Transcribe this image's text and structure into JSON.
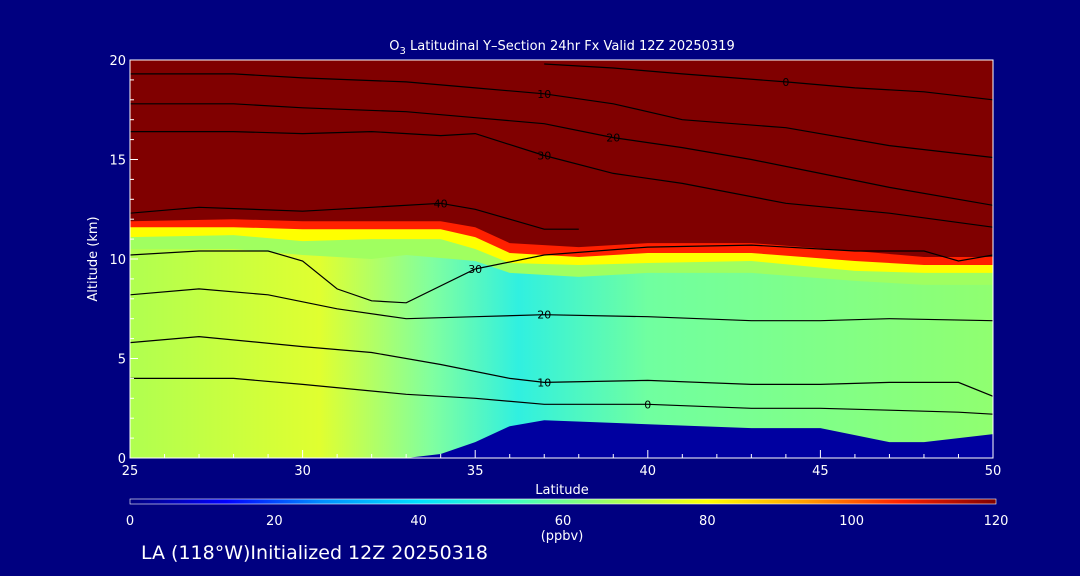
{
  "chart_data": {
    "type": "heatmap",
    "title_base": "O",
    "title_sub": "3",
    "title_rest": " Latitudinal Y–Section 24hr  Fx Valid 12Z 20250319",
    "xlabel": "Latitude",
    "ylabel": "Altitude (km)",
    "xlim": [
      25,
      50
    ],
    "ylim": [
      0,
      20
    ],
    "x_ticks": [
      "25",
      "30",
      "35",
      "40",
      "45",
      "50"
    ],
    "y_ticks": [
      "0",
      "5",
      "10",
      "15",
      "20"
    ],
    "colorbar": {
      "ticks": [
        "0",
        "20",
        "40",
        "60",
        "80",
        "100",
        "120"
      ],
      "label": "(ppbv)",
      "range": [
        0,
        120
      ],
      "colors": [
        "#000080",
        "#0000ff",
        "#0090ff",
        "#00e0ff",
        "#40ffc0",
        "#a0ff60",
        "#ffff00",
        "#ffa000",
        "#ff2000",
        "#800000"
      ]
    },
    "surface": {
      "note": "terrain profile (altitude km) along latitude",
      "x": [
        25,
        33,
        34,
        35,
        36,
        37,
        40,
        43,
        45,
        47,
        48,
        50
      ],
      "y": [
        0,
        0,
        0.2,
        0.8,
        1.6,
        1.9,
        1.7,
        1.5,
        1.5,
        0.8,
        0.8,
        1.2
      ]
    },
    "field_bands": [
      {
        "ppbv": 120,
        "x": [
          25,
          28,
          30,
          32,
          34,
          35,
          36,
          38,
          40,
          43,
          46,
          48,
          50
        ],
        "y": [
          11.9,
          12.0,
          11.9,
          11.9,
          11.9,
          11.6,
          10.8,
          10.6,
          10.8,
          10.8,
          10.4,
          10.1,
          10.1
        ]
      },
      {
        "ppbv": 100,
        "x": [
          25,
          28,
          30,
          32,
          34,
          35,
          36,
          38,
          40,
          43,
          46,
          48,
          50
        ],
        "y": [
          11.6,
          11.6,
          11.5,
          11.5,
          11.5,
          11.1,
          10.3,
          10.1,
          10.3,
          10.3,
          9.9,
          9.7,
          9.7
        ]
      },
      {
        "ppbv": 80,
        "x": [
          25,
          28,
          30,
          32,
          34,
          35,
          36,
          38,
          40,
          43,
          46,
          48,
          50
        ],
        "y": [
          11.1,
          11.2,
          10.9,
          11.0,
          11.0,
          10.5,
          9.8,
          9.7,
          9.8,
          9.9,
          9.4,
          9.3,
          9.3
        ]
      },
      {
        "ppbv": 60,
        "x": [
          25,
          28,
          30,
          32,
          33,
          35,
          36,
          38,
          40,
          43,
          46,
          48,
          50
        ],
        "y": [
          10.5,
          10.5,
          10.2,
          10.0,
          10.2,
          9.9,
          9.3,
          9.1,
          9.3,
          9.3,
          8.9,
          8.7,
          8.7
        ]
      }
    ],
    "contours": [
      {
        "label": "0",
        "x": [
          25,
          28,
          30,
          33,
          35,
          37,
          40,
          43,
          45,
          47,
          49,
          50
        ],
        "y": [
          4.0,
          4.0,
          3.7,
          3.2,
          3.0,
          2.7,
          2.7,
          2.5,
          2.5,
          2.4,
          2.3,
          2.2
        ]
      },
      {
        "label": "10",
        "x": [
          25,
          27,
          30,
          32,
          34,
          36,
          37,
          40,
          43,
          45,
          47,
          49,
          50
        ],
        "y": [
          5.8,
          6.1,
          5.6,
          5.3,
          4.7,
          4.0,
          3.8,
          3.9,
          3.7,
          3.7,
          3.8,
          3.8,
          3.1
        ]
      },
      {
        "label": "20",
        "x": [
          25,
          27,
          29,
          31,
          33,
          35,
          37,
          40,
          43,
          45,
          47,
          50
        ],
        "y": [
          8.2,
          8.5,
          8.2,
          7.5,
          7.0,
          7.1,
          7.2,
          7.1,
          6.9,
          6.9,
          7.0,
          6.9
        ]
      },
      {
        "label": "30",
        "x": [
          25,
          27,
          29,
          30,
          31,
          32,
          33,
          35,
          37,
          40,
          43,
          46,
          48,
          49,
          50
        ],
        "y": [
          10.2,
          10.4,
          10.4,
          9.9,
          8.5,
          7.9,
          7.8,
          9.5,
          10.2,
          10.6,
          10.7,
          10.4,
          10.4,
          9.9,
          10.2
        ]
      },
      {
        "label": "40",
        "x": [
          25,
          27,
          30,
          32,
          34,
          35,
          36,
          37,
          38
        ],
        "y": [
          12.3,
          12.6,
          12.4,
          12.6,
          12.8,
          12.5,
          12.0,
          11.5,
          11.5
        ]
      },
      {
        "label": "30",
        "x": [
          25,
          28,
          30,
          32,
          34,
          35,
          37,
          39,
          41,
          44,
          47,
          50
        ],
        "y": [
          16.4,
          16.4,
          16.3,
          16.4,
          16.2,
          16.3,
          15.2,
          14.3,
          13.8,
          12.8,
          12.3,
          11.6
        ]
      },
      {
        "label": "20",
        "x": [
          25,
          28,
          30,
          33,
          35,
          37,
          39,
          41,
          43,
          45,
          47,
          50
        ],
        "y": [
          17.8,
          17.8,
          17.6,
          17.4,
          17.1,
          16.8,
          16.1,
          15.6,
          15.0,
          14.3,
          13.6,
          12.7
        ]
      },
      {
        "label": "10",
        "x": [
          25,
          28,
          30,
          33,
          35,
          37,
          39,
          41,
          44,
          47,
          50
        ],
        "y": [
          19.3,
          19.3,
          19.1,
          18.9,
          18.6,
          18.3,
          17.8,
          17.0,
          16.6,
          15.7,
          15.1
        ]
      },
      {
        "label": "0",
        "x": [
          37,
          39,
          41,
          44,
          46,
          48,
          50
        ],
        "y": [
          19.8,
          19.6,
          19.3,
          18.9,
          18.6,
          18.4,
          18.0
        ]
      }
    ]
  },
  "footer": {
    "text": "LA (118°W)Initialized 12Z 20250318"
  }
}
